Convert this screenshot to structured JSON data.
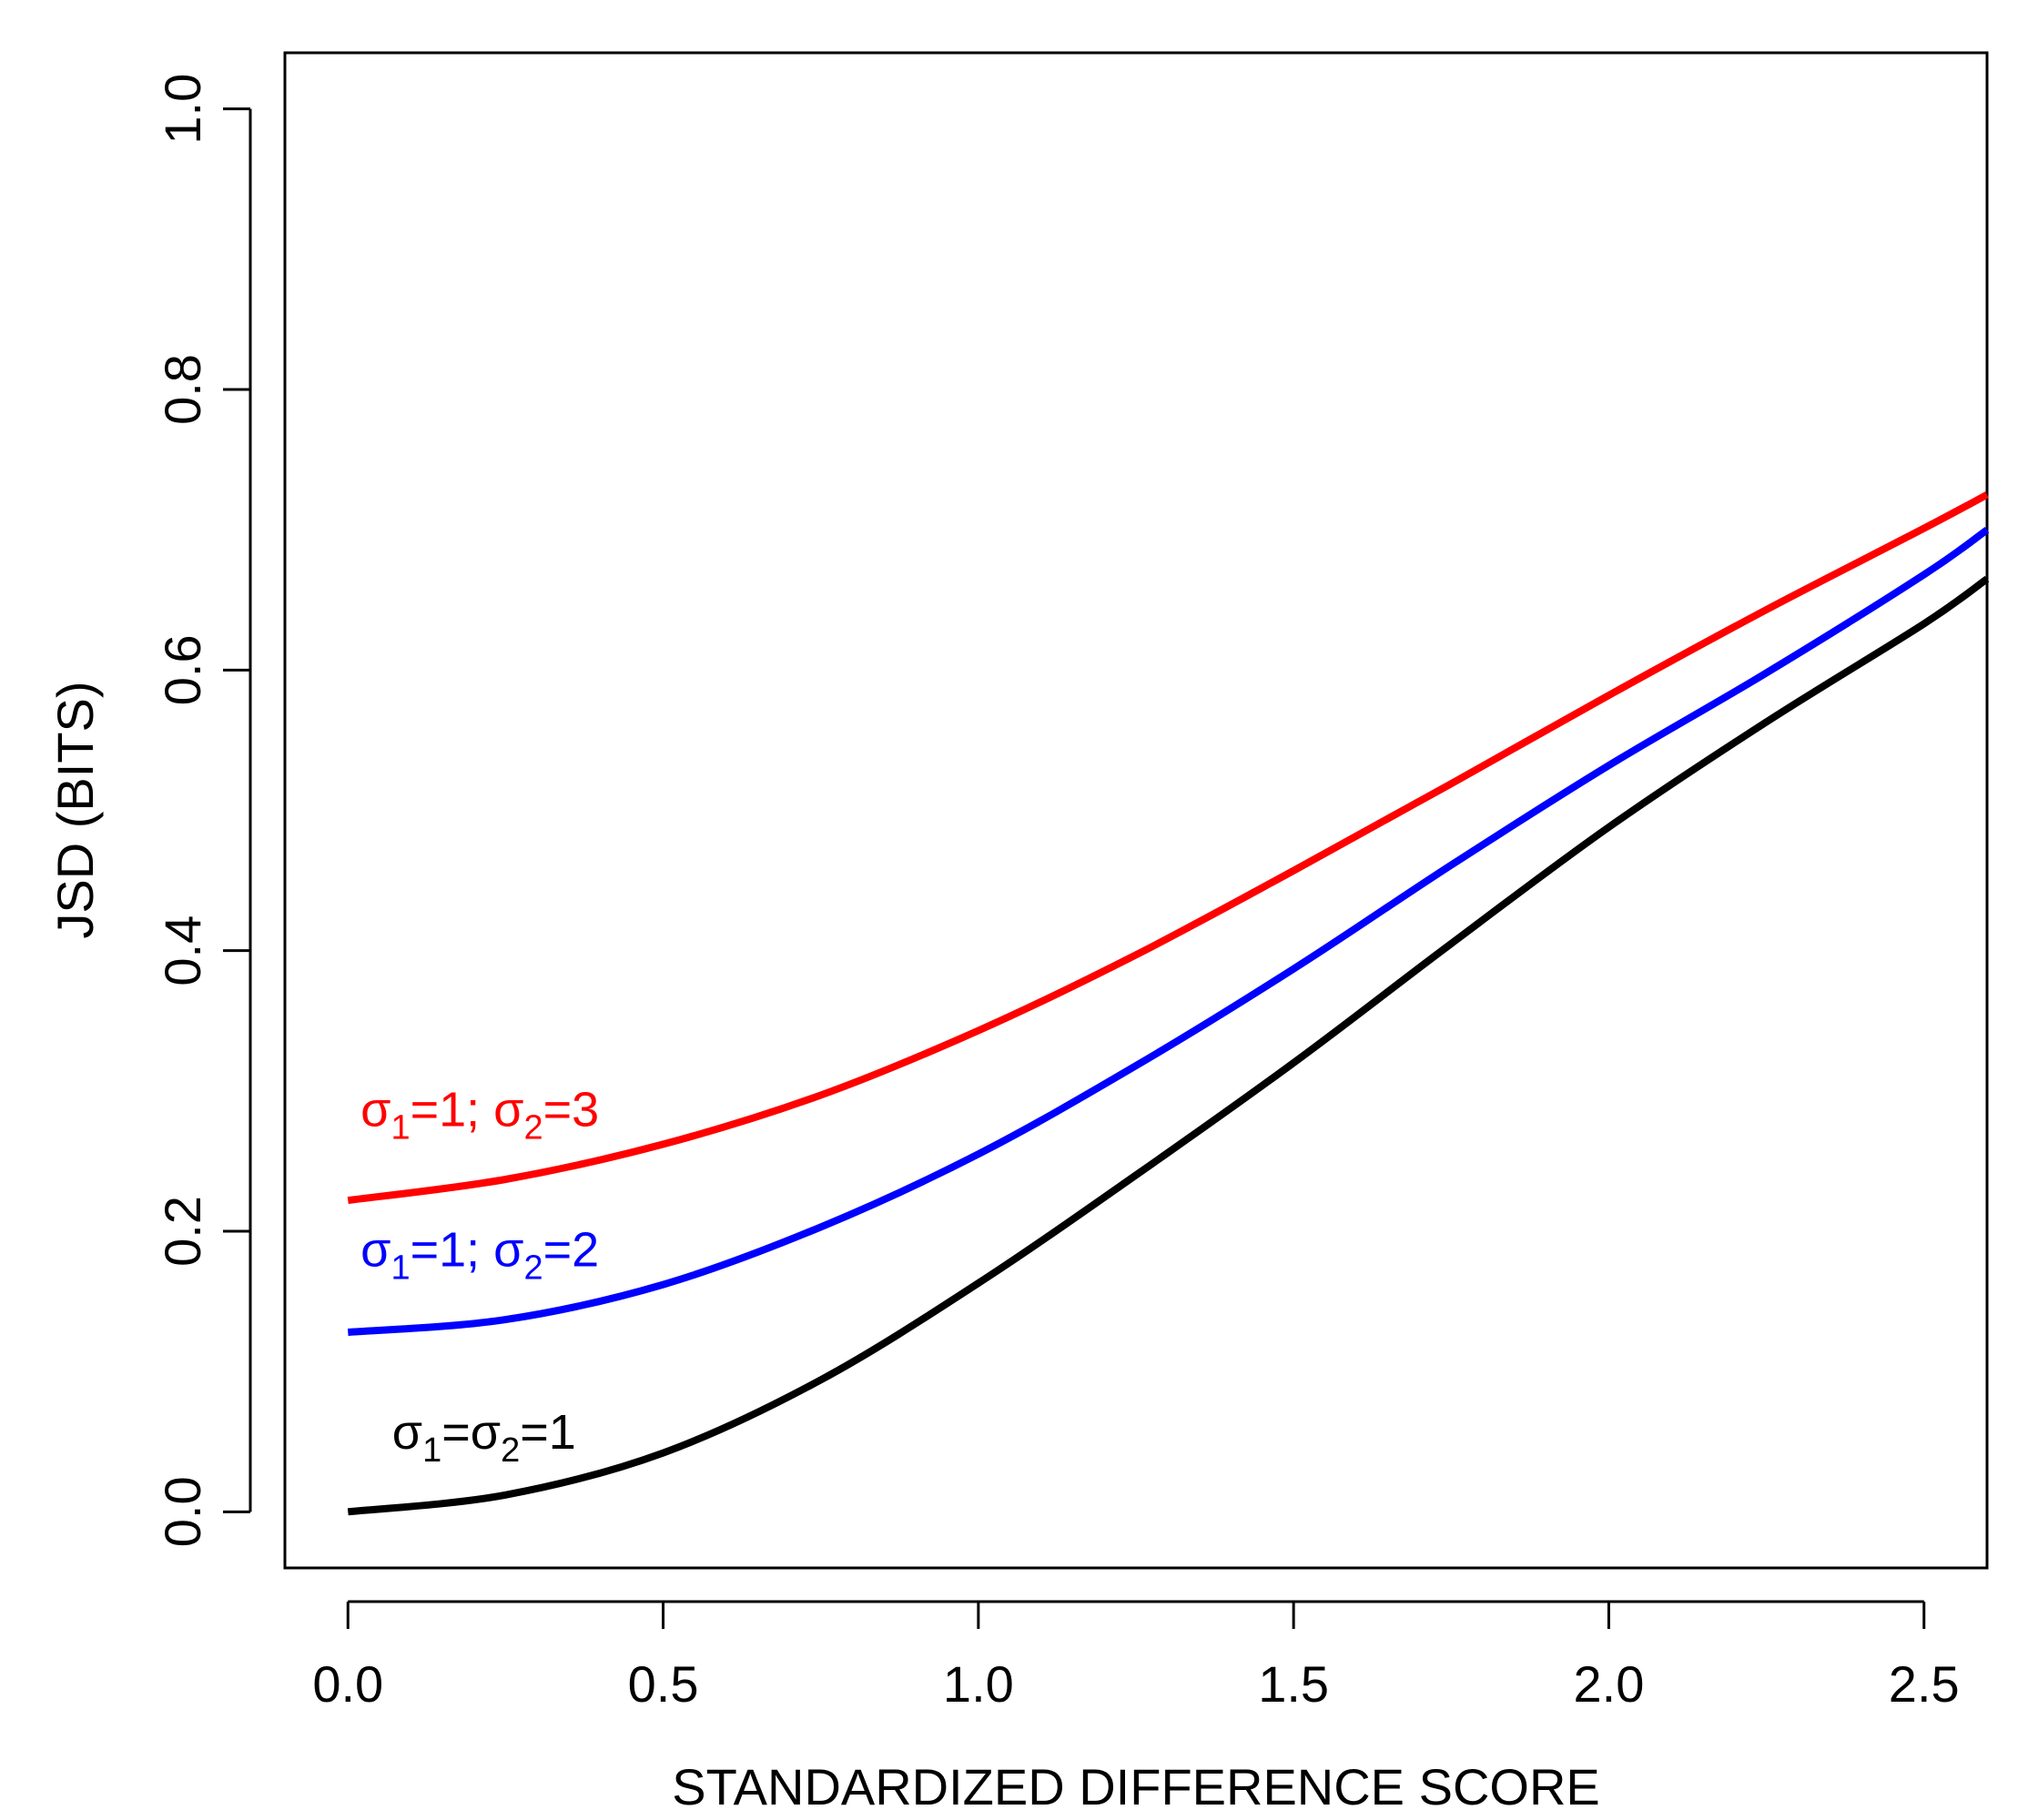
{
  "chart_data": {
    "type": "line",
    "title": "",
    "xlabel": "STANDARDIZED DIFFERENCE SCORE",
    "ylabel": "JSD (BITS)",
    "xlim": [
      -0.1,
      2.6
    ],
    "ylim": [
      -0.04,
      1.04
    ],
    "x_ticks": [
      0.0,
      0.5,
      1.0,
      1.5,
      2.0,
      2.5
    ],
    "x_tick_labels": [
      "0.0",
      "0.5",
      "1.0",
      "1.5",
      "2.0",
      "2.5"
    ],
    "y_ticks": [
      0.0,
      0.2,
      0.4,
      0.6,
      0.8,
      1.0
    ],
    "y_tick_labels": [
      "0.0",
      "0.2",
      "0.4",
      "0.6",
      "0.8",
      "1.0"
    ],
    "grid": false,
    "series": [
      {
        "name": "σ1=1; σ2=3",
        "color": "#ff0000",
        "label_parts": [
          "σ",
          "1",
          "=1; σ",
          "2",
          "=3"
        ],
        "label_anchor": [
          0.02,
          0.275
        ],
        "x": [
          0.0,
          0.25,
          0.5,
          0.75,
          1.0,
          1.25,
          1.5,
          1.75,
          2.0,
          2.25,
          2.5,
          2.6
        ],
        "y": [
          0.222,
          0.237,
          0.262,
          0.297,
          0.343,
          0.397,
          0.457,
          0.519,
          0.582,
          0.643,
          0.701,
          0.725
        ]
      },
      {
        "name": "σ1=1; σ2=2",
        "color": "#0000ff",
        "label_parts": [
          "σ",
          "1",
          "=1; σ",
          "2",
          "=2"
        ],
        "label_anchor": [
          0.02,
          0.175
        ],
        "x": [
          0.0,
          0.25,
          0.5,
          0.75,
          1.0,
          1.25,
          1.5,
          1.75,
          2.0,
          2.25,
          2.5,
          2.6
        ],
        "y": [
          0.128,
          0.137,
          0.162,
          0.203,
          0.255,
          0.318,
          0.387,
          0.461,
          0.532,
          0.598,
          0.668,
          0.7
        ]
      },
      {
        "name": "σ1=σ2=1",
        "color": "#000000",
        "label_parts": [
          "σ",
          "1",
          "=σ",
          "2",
          "=1"
        ],
        "label_anchor": [
          0.07,
          0.045
        ],
        "x": [
          0.0,
          0.25,
          0.5,
          0.75,
          1.0,
          1.25,
          1.5,
          1.75,
          2.0,
          2.25,
          2.5,
          2.6
        ],
        "y": [
          0.0,
          0.012,
          0.042,
          0.094,
          0.163,
          0.24,
          0.32,
          0.405,
          0.488,
          0.563,
          0.633,
          0.665
        ]
      }
    ]
  }
}
